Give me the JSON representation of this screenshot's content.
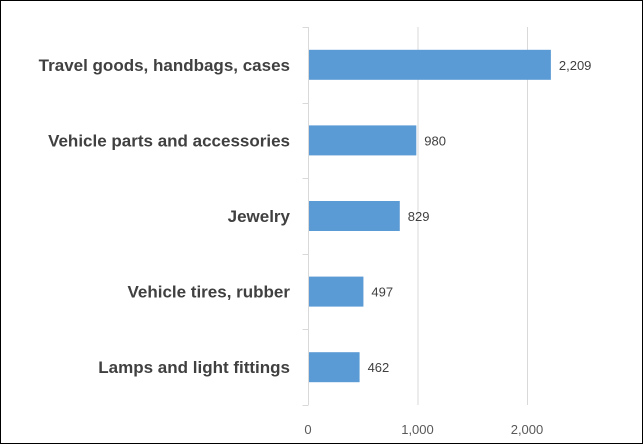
{
  "chart_data": {
    "type": "bar",
    "orientation": "horizontal",
    "title": "",
    "xlabel": "",
    "ylabel": "",
    "categories": [
      "Travel goods, handbags, cases",
      "Vehicle parts and accessories",
      "Jewelry",
      "Vehicle tires, rubber",
      "Lamps and light fittings"
    ],
    "values": [
      2209,
      980,
      829,
      497,
      462
    ],
    "data_labels": [
      "2,209",
      "980",
      "829",
      "497",
      "462"
    ],
    "xlim": [
      0,
      2500
    ],
    "x_ticks": [
      0,
      1000,
      2000
    ],
    "x_tick_labels": [
      "0",
      "1,000",
      "2,000"
    ],
    "grid": "vertical",
    "legend": "none",
    "bar_color": "#5b9bd5"
  }
}
